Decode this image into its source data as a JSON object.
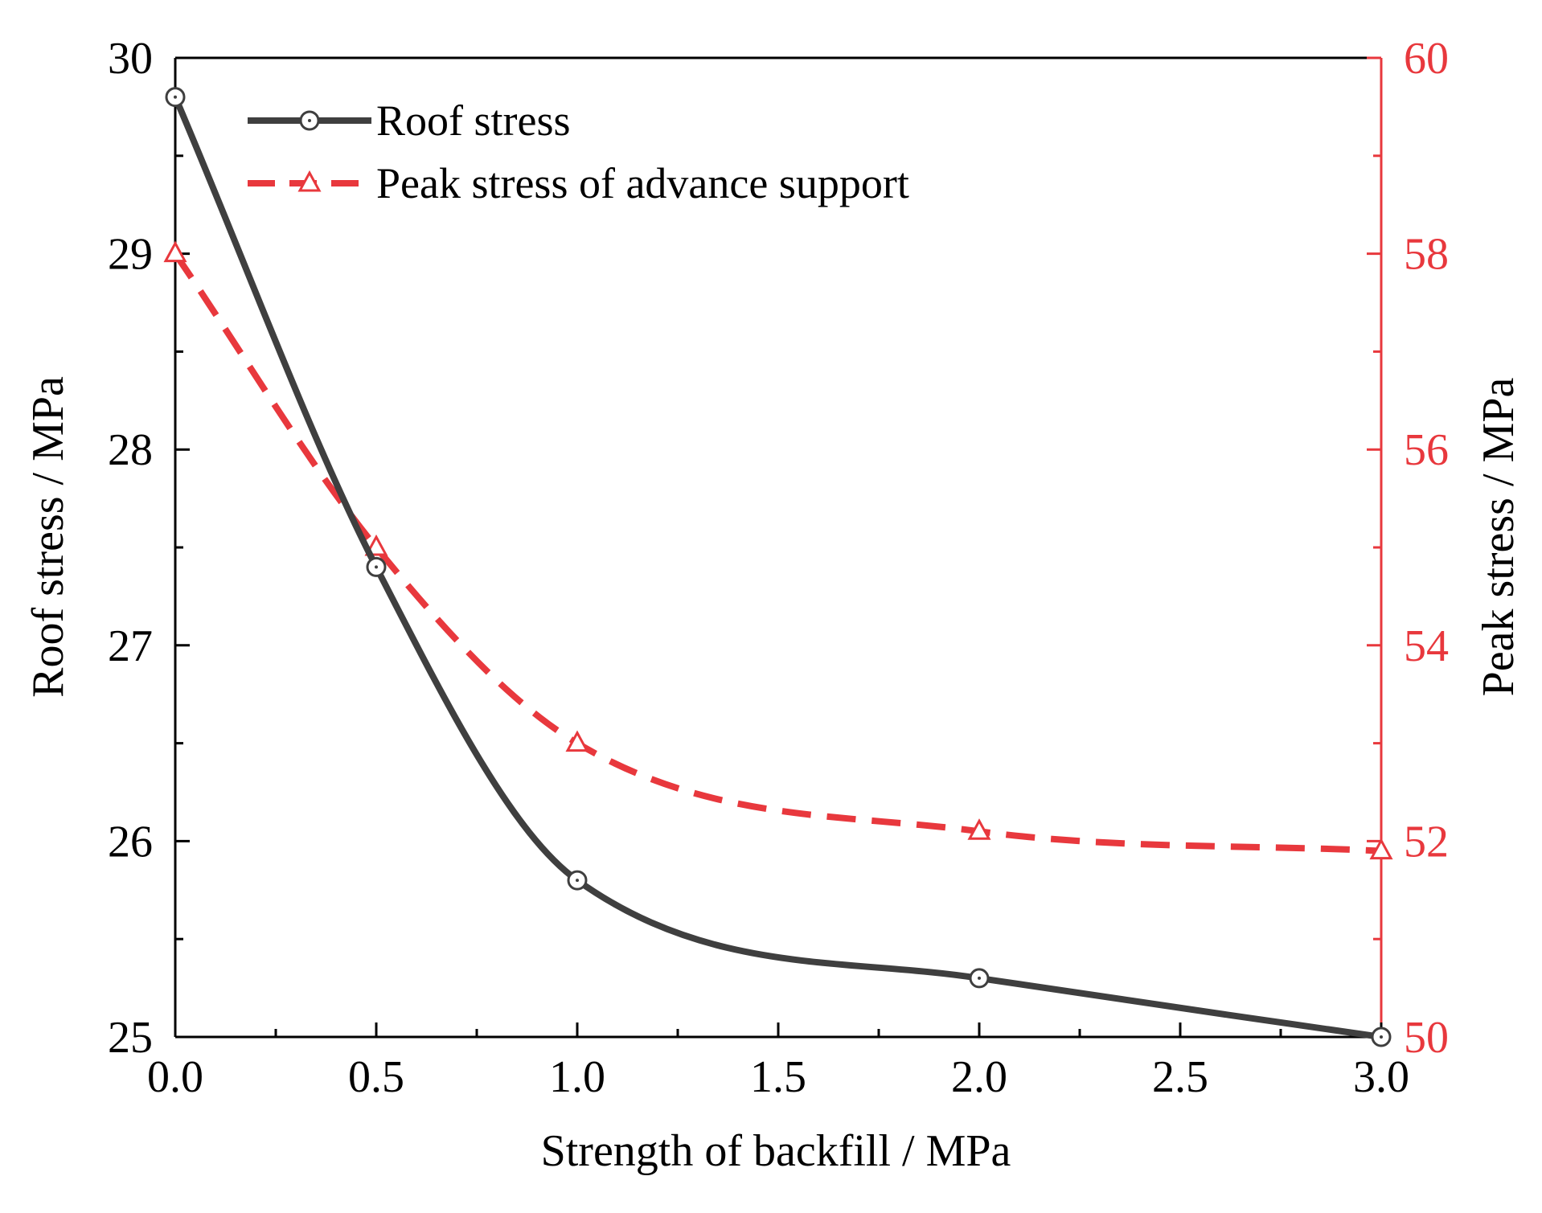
{
  "chart_data": {
    "type": "line",
    "x": [
      0.0,
      0.5,
      1.0,
      2.0,
      3.0
    ],
    "xlabel": "Strength of backfill / MPa",
    "xlim": [
      0.0,
      3.0
    ],
    "xticks": [
      0.0,
      0.5,
      1.0,
      1.5,
      2.0,
      2.5,
      3.0
    ],
    "xtick_labels": [
      "0.0",
      "0.5",
      "1.0",
      "1.5",
      "2.0",
      "2.5",
      "3.0"
    ],
    "y_left": {
      "label": "Roof stress / MPa",
      "lim": [
        25,
        30
      ],
      "ticks": [
        25,
        26,
        27,
        28,
        29,
        30
      ],
      "tick_labels": [
        "25",
        "26",
        "27",
        "28",
        "29",
        "30"
      ]
    },
    "y_right": {
      "label": "Peak stress / MPa",
      "lim": [
        50,
        60
      ],
      "ticks": [
        50,
        52,
        54,
        56,
        58,
        60
      ],
      "tick_labels": [
        "50",
        "52",
        "54",
        "56",
        "58",
        "60"
      ]
    },
    "series": [
      {
        "name": "Roof stress",
        "axis": "left",
        "style": "solid",
        "marker": "circle",
        "color": "#3f3f3f",
        "values": [
          29.8,
          27.4,
          25.8,
          25.3,
          25.0
        ]
      },
      {
        "name": "Peak stress of advance support",
        "axis": "right",
        "style": "dashed",
        "marker": "triangle",
        "color": "#e8383d",
        "values": [
          58.0,
          55.0,
          53.0,
          52.1,
          51.9
        ]
      }
    ],
    "legend_position": "top-left"
  }
}
